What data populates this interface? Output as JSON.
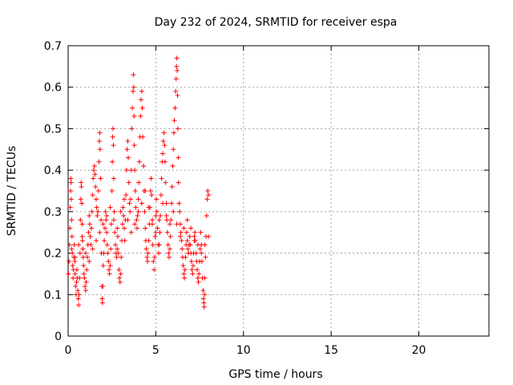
{
  "chart_data": {
    "type": "scatter",
    "title": "Day 232 of 2024, SRMTID for receiver espa",
    "xlabel": "GPS time / hours",
    "ylabel": "SRMTID / TECUs",
    "xlim": [
      0,
      24
    ],
    "ylim": [
      0,
      0.7
    ],
    "xticks": [
      0,
      5,
      10,
      15,
      20
    ],
    "xtick_labels": [
      "0",
      "5",
      "10",
      "15",
      "20"
    ],
    "yticks": [
      0,
      0.1,
      0.2,
      0.3,
      0.4,
      0.5,
      0.6,
      0.7
    ],
    "ytick_labels": [
      "0",
      "0.1",
      "0.2",
      "0.3",
      "0.4",
      "0.5",
      "0.6",
      "0.7"
    ],
    "grid": true,
    "marker": "+",
    "series": [
      {
        "name": "SRMTID",
        "color": "#ff0000",
        "points": [
          [
            0.02,
            0.15
          ],
          [
            0.05,
            0.18
          ],
          [
            0.08,
            0.22
          ],
          [
            0.1,
            0.26
          ],
          [
            0.12,
            0.31
          ],
          [
            0.14,
            0.35
          ],
          [
            0.15,
            0.38
          ],
          [
            0.17,
            0.37
          ],
          [
            0.18,
            0.33
          ],
          [
            0.2,
            0.28
          ],
          [
            0.22,
            0.24
          ],
          [
            0.24,
            0.2
          ],
          [
            0.26,
            0.17
          ],
          [
            0.28,
            0.14
          ],
          [
            0.3,
            0.16
          ],
          [
            0.32,
            0.19
          ],
          [
            0.35,
            0.22
          ],
          [
            0.38,
            0.18
          ],
          [
            0.4,
            0.15
          ],
          [
            0.42,
            0.12
          ],
          [
            0.45,
            0.1
          ],
          [
            0.48,
            0.13
          ],
          [
            0.5,
            0.16
          ],
          [
            0.52,
            0.14
          ],
          [
            0.55,
            0.11
          ],
          [
            0.58,
            0.09
          ],
          [
            0.6,
            0.075
          ],
          [
            0.62,
            0.1
          ],
          [
            0.65,
            0.14
          ],
          [
            0.68,
            0.2
          ],
          [
            0.7,
            0.28
          ],
          [
            0.72,
            0.33
          ],
          [
            0.74,
            0.37
          ],
          [
            0.76,
            0.36
          ],
          [
            0.78,
            0.32
          ],
          [
            0.8,
            0.27
          ],
          [
            0.82,
            0.23
          ],
          [
            0.84,
            0.21
          ],
          [
            0.86,
            0.19
          ],
          [
            0.88,
            0.17
          ],
          [
            0.9,
            0.15
          ],
          [
            0.93,
            0.14
          ],
          [
            0.96,
            0.12
          ],
          [
            1.0,
            0.11
          ],
          [
            1.03,
            0.13
          ],
          [
            1.06,
            0.16
          ],
          [
            1.1,
            0.19
          ],
          [
            1.13,
            0.22
          ],
          [
            1.16,
            0.25
          ],
          [
            1.2,
            0.29
          ],
          [
            1.23,
            0.27
          ],
          [
            1.26,
            0.24
          ],
          [
            1.3,
            0.22
          ],
          [
            1.33,
            0.26
          ],
          [
            1.36,
            0.3
          ],
          [
            1.4,
            0.34
          ],
          [
            1.43,
            0.38
          ],
          [
            1.46,
            0.4
          ],
          [
            1.5,
            0.41
          ],
          [
            1.53,
            0.39
          ],
          [
            1.56,
            0.36
          ],
          [
            1.6,
            0.33
          ],
          [
            1.63,
            0.31
          ],
          [
            1.66,
            0.29
          ],
          [
            1.7,
            0.3
          ],
          [
            1.73,
            0.35
          ],
          [
            1.76,
            0.42
          ],
          [
            1.78,
            0.47
          ],
          [
            1.8,
            0.49
          ],
          [
            1.82,
            0.45
          ],
          [
            1.85,
            0.38
          ],
          [
            1.88,
            0.28
          ],
          [
            1.9,
            0.2
          ],
          [
            1.92,
            0.12
          ],
          [
            1.94,
            0.09
          ],
          [
            1.96,
            0.08
          ],
          [
            1.98,
            0.12
          ],
          [
            2.0,
            0.17
          ],
          [
            2.03,
            0.2
          ],
          [
            2.06,
            0.23
          ],
          [
            2.1,
            0.26
          ],
          [
            2.13,
            0.3
          ],
          [
            2.16,
            0.28
          ],
          [
            2.2,
            0.25
          ],
          [
            2.23,
            0.22
          ],
          [
            2.26,
            0.2
          ],
          [
            2.3,
            0.18
          ],
          [
            2.33,
            0.16
          ],
          [
            2.36,
            0.15
          ],
          [
            2.4,
            0.17
          ],
          [
            2.43,
            0.21
          ],
          [
            2.46,
            0.27
          ],
          [
            2.5,
            0.35
          ],
          [
            2.52,
            0.42
          ],
          [
            2.54,
            0.48
          ],
          [
            2.56,
            0.5
          ],
          [
            2.58,
            0.46
          ],
          [
            2.6,
            0.38
          ],
          [
            2.63,
            0.3
          ],
          [
            2.66,
            0.25
          ],
          [
            2.7,
            0.22
          ],
          [
            2.73,
            0.2
          ],
          [
            2.76,
            0.19
          ],
          [
            2.8,
            0.21
          ],
          [
            2.83,
            0.24
          ],
          [
            2.86,
            0.2
          ],
          [
            2.9,
            0.16
          ],
          [
            2.93,
            0.14
          ],
          [
            2.96,
            0.13
          ],
          [
            3.0,
            0.15
          ],
          [
            3.03,
            0.19
          ],
          [
            3.06,
            0.23
          ],
          [
            3.1,
            0.27
          ],
          [
            3.13,
            0.31
          ],
          [
            3.16,
            0.29
          ],
          [
            3.2,
            0.26
          ],
          [
            3.23,
            0.23
          ],
          [
            3.26,
            0.28
          ],
          [
            3.3,
            0.34
          ],
          [
            3.33,
            0.4
          ],
          [
            3.36,
            0.45
          ],
          [
            3.4,
            0.47
          ],
          [
            3.43,
            0.43
          ],
          [
            3.46,
            0.37
          ],
          [
            3.5,
            0.32
          ],
          [
            3.53,
            0.3
          ],
          [
            3.56,
            0.33
          ],
          [
            3.6,
            0.4
          ],
          [
            3.63,
            0.5
          ],
          [
            3.66,
            0.55
          ],
          [
            3.7,
            0.59
          ],
          [
            3.72,
            0.63
          ],
          [
            3.74,
            0.6
          ],
          [
            3.76,
            0.53
          ],
          [
            3.78,
            0.46
          ],
          [
            3.8,
            0.4
          ],
          [
            3.83,
            0.35
          ],
          [
            3.86,
            0.31
          ],
          [
            3.9,
            0.28
          ],
          [
            3.93,
            0.26
          ],
          [
            3.96,
            0.29
          ],
          [
            4.0,
            0.33
          ],
          [
            4.03,
            0.37
          ],
          [
            4.06,
            0.42
          ],
          [
            4.1,
            0.48
          ],
          [
            4.13,
            0.53
          ],
          [
            4.16,
            0.57
          ],
          [
            4.2,
            0.59
          ],
          [
            4.23,
            0.55
          ],
          [
            4.26,
            0.48
          ],
          [
            4.3,
            0.41
          ],
          [
            4.33,
            0.35
          ],
          [
            4.36,
            0.3
          ],
          [
            4.4,
            0.26
          ],
          [
            4.43,
            0.23
          ],
          [
            4.46,
            0.21
          ],
          [
            4.5,
            0.19
          ],
          [
            4.53,
            0.18
          ],
          [
            4.56,
            0.2
          ],
          [
            4.6,
            0.23
          ],
          [
            4.63,
            0.27
          ],
          [
            4.66,
            0.31
          ],
          [
            4.7,
            0.35
          ],
          [
            4.73,
            0.38
          ],
          [
            4.76,
            0.34
          ],
          [
            4.8,
            0.28
          ],
          [
            4.83,
            0.22
          ],
          [
            4.86,
            0.18
          ],
          [
            4.9,
            0.16
          ],
          [
            4.93,
            0.19
          ],
          [
            4.96,
            0.24
          ],
          [
            5.0,
            0.29
          ],
          [
            5.03,
            0.33
          ],
          [
            5.06,
            0.3
          ],
          [
            5.1,
            0.26
          ],
          [
            5.13,
            0.22
          ],
          [
            5.16,
            0.2
          ],
          [
            5.2,
            0.22
          ],
          [
            5.23,
            0.25
          ],
          [
            5.26,
            0.29
          ],
          [
            5.3,
            0.34
          ],
          [
            5.33,
            0.38
          ],
          [
            5.36,
            0.42
          ],
          [
            5.4,
            0.44
          ],
          [
            5.43,
            0.47
          ],
          [
            5.46,
            0.49
          ],
          [
            5.5,
            0.46
          ],
          [
            5.53,
            0.42
          ],
          [
            5.56,
            0.37
          ],
          [
            5.6,
            0.32
          ],
          [
            5.63,
            0.28
          ],
          [
            5.66,
            0.25
          ],
          [
            5.7,
            0.22
          ],
          [
            5.73,
            0.2
          ],
          [
            5.76,
            0.19
          ],
          [
            5.8,
            0.21
          ],
          [
            5.83,
            0.24
          ],
          [
            5.86,
            0.28
          ],
          [
            5.9,
            0.32
          ],
          [
            5.93,
            0.36
          ],
          [
            5.96,
            0.41
          ],
          [
            6.0,
            0.45
          ],
          [
            6.03,
            0.49
          ],
          [
            6.06,
            0.52
          ],
          [
            6.1,
            0.55
          ],
          [
            6.13,
            0.59
          ],
          [
            6.16,
            0.62
          ],
          [
            6.18,
            0.65
          ],
          [
            6.2,
            0.67
          ],
          [
            6.22,
            0.64
          ],
          [
            6.24,
            0.58
          ],
          [
            6.26,
            0.5
          ],
          [
            6.28,
            0.43
          ],
          [
            6.3,
            0.37
          ],
          [
            6.33,
            0.32
          ],
          [
            6.36,
            0.3
          ],
          [
            6.4,
            0.27
          ],
          [
            6.43,
            0.25
          ],
          [
            6.46,
            0.23
          ],
          [
            6.5,
            0.21
          ],
          [
            6.53,
            0.19
          ],
          [
            6.56,
            0.17
          ],
          [
            6.6,
            0.15
          ],
          [
            6.63,
            0.14
          ],
          [
            6.66,
            0.16
          ],
          [
            6.7,
            0.19
          ],
          [
            6.73,
            0.22
          ],
          [
            6.76,
            0.25
          ],
          [
            6.8,
            0.23
          ],
          [
            6.83,
            0.21
          ],
          [
            6.86,
            0.2
          ],
          [
            6.9,
            0.22
          ],
          [
            6.93,
            0.24
          ],
          [
            6.96,
            0.22
          ],
          [
            7.0,
            0.2
          ],
          [
            7.03,
            0.18
          ],
          [
            7.06,
            0.16
          ],
          [
            7.1,
            0.15
          ],
          [
            7.13,
            0.17
          ],
          [
            7.16,
            0.2
          ],
          [
            7.2,
            0.23
          ],
          [
            7.23,
            0.25
          ],
          [
            7.26,
            0.23
          ],
          [
            7.3,
            0.2
          ],
          [
            7.33,
            0.18
          ],
          [
            7.36,
            0.16
          ],
          [
            7.4,
            0.14
          ],
          [
            7.43,
            0.13
          ],
          [
            7.46,
            0.15
          ],
          [
            7.5,
            0.18
          ],
          [
            7.53,
            0.21
          ],
          [
            7.56,
            0.25
          ],
          [
            7.6,
            0.22
          ],
          [
            7.63,
            0.18
          ],
          [
            7.66,
            0.14
          ],
          [
            7.7,
            0.11
          ],
          [
            7.72,
            0.09
          ],
          [
            7.74,
            0.08
          ],
          [
            7.76,
            0.07
          ],
          [
            7.78,
            0.1
          ],
          [
            7.8,
            0.14
          ],
          [
            7.83,
            0.19
          ],
          [
            7.86,
            0.24
          ],
          [
            7.9,
            0.29
          ],
          [
            7.93,
            0.33
          ],
          [
            7.96,
            0.35
          ],
          [
            8.0,
            0.34
          ],
          [
            0.2,
            0.21
          ],
          [
            0.4,
            0.19
          ],
          [
            0.6,
            0.22
          ],
          [
            0.8,
            0.24
          ],
          [
            1.0,
            0.2
          ],
          [
            1.2,
            0.18
          ],
          [
            1.4,
            0.21
          ],
          [
            1.6,
            0.23
          ],
          [
            1.8,
            0.25
          ],
          [
            2.0,
            0.27
          ],
          [
            2.2,
            0.29
          ],
          [
            2.4,
            0.31
          ],
          [
            2.6,
            0.28
          ],
          [
            2.8,
            0.26
          ],
          [
            3.0,
            0.3
          ],
          [
            3.2,
            0.33
          ],
          [
            3.4,
            0.28
          ],
          [
            3.6,
            0.25
          ],
          [
            3.8,
            0.27
          ],
          [
            4.0,
            0.3
          ],
          [
            4.2,
            0.32
          ],
          [
            4.4,
            0.35
          ],
          [
            4.6,
            0.31
          ],
          [
            4.8,
            0.27
          ],
          [
            5.0,
            0.25
          ],
          [
            5.2,
            0.28
          ],
          [
            5.4,
            0.32
          ],
          [
            5.6,
            0.29
          ],
          [
            5.8,
            0.27
          ],
          [
            6.0,
            0.3
          ],
          [
            6.2,
            0.27
          ],
          [
            6.4,
            0.24
          ],
          [
            6.6,
            0.26
          ],
          [
            6.8,
            0.28
          ],
          [
            7.0,
            0.26
          ],
          [
            7.2,
            0.24
          ],
          [
            7.4,
            0.22
          ],
          [
            7.6,
            0.2
          ],
          [
            7.8,
            0.22
          ],
          [
            8.0,
            0.24
          ]
        ]
      }
    ]
  }
}
